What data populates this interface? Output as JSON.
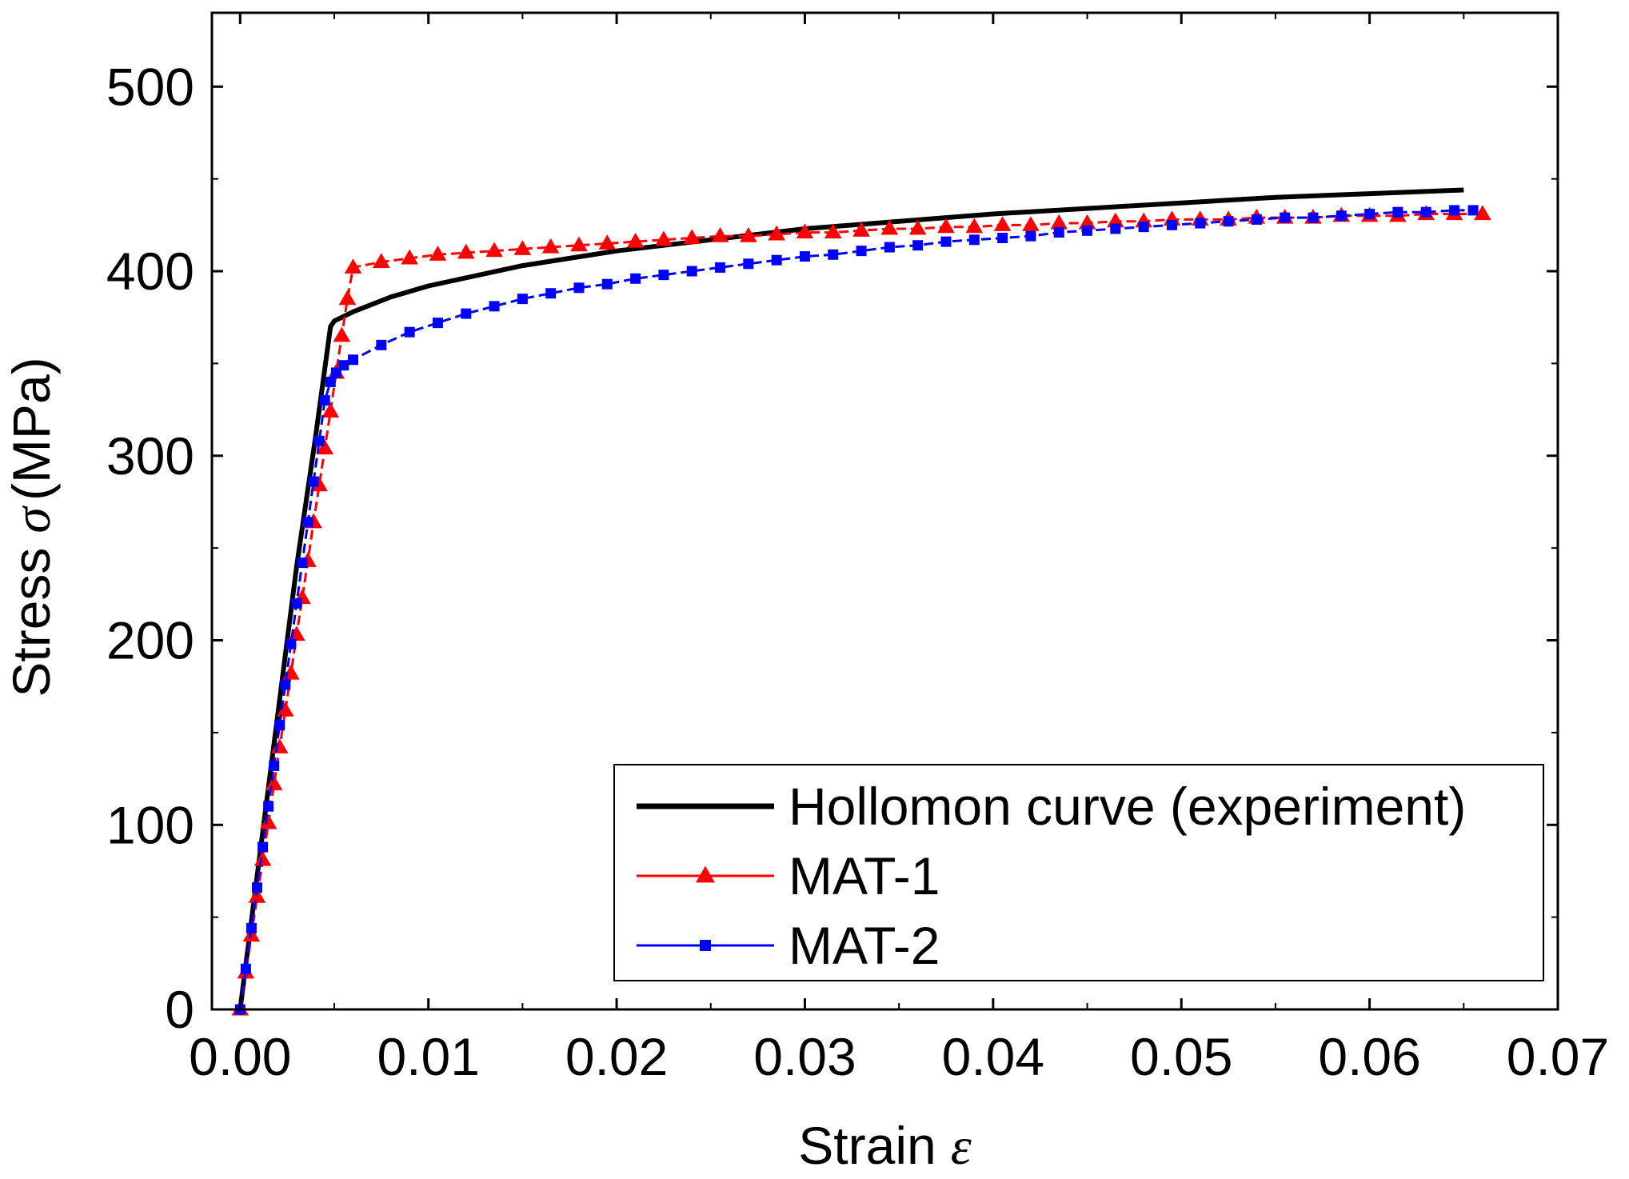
{
  "chart_data": {
    "type": "line",
    "title": "",
    "xlabel": "Strain",
    "xlabel_symbol": "ε",
    "ylabel": "Stress",
    "ylabel_symbol": "σ",
    "ylabel_unit": "(MPa)",
    "xlim": [
      -0.0015,
      0.07
    ],
    "ylim": [
      0,
      540
    ],
    "x_ticks": [
      0.0,
      0.01,
      0.02,
      0.03,
      0.04,
      0.05,
      0.06,
      0.07
    ],
    "x_tick_labels": [
      "0.00",
      "0.01",
      "0.02",
      "0.03",
      "0.04",
      "0.05",
      "0.06",
      "0.07"
    ],
    "y_ticks": [
      0,
      100,
      200,
      300,
      400,
      500
    ],
    "y_tick_labels": [
      "0",
      "100",
      "200",
      "300",
      "400",
      "500"
    ],
    "grid": false,
    "legend_position": "bottom-right",
    "series": [
      {
        "name": "Hollomon curve (experiment)",
        "color": "#000000",
        "marker": "none",
        "line": "solid",
        "x": [
          0.0,
          0.001,
          0.002,
          0.003,
          0.004,
          0.0048,
          0.005,
          0.006,
          0.008,
          0.01,
          0.015,
          0.02,
          0.025,
          0.03,
          0.035,
          0.04,
          0.045,
          0.05,
          0.055,
          0.06,
          0.065
        ],
        "y": [
          0,
          80,
          160,
          240,
          310,
          370,
          373,
          378,
          386,
          392,
          403,
          411,
          417,
          423,
          427,
          431,
          434,
          437,
          440,
          442,
          444
        ]
      },
      {
        "name": "MAT-1",
        "color": "#ff0000",
        "marker": "triangle",
        "line": "dashed",
        "x": [
          0.0,
          0.0003,
          0.0006,
          0.0009,
          0.0012,
          0.0015,
          0.0018,
          0.0021,
          0.0024,
          0.0027,
          0.003,
          0.0033,
          0.0036,
          0.0039,
          0.0042,
          0.0045,
          0.0048,
          0.0051,
          0.0054,
          0.0057,
          0.006,
          0.0075,
          0.009,
          0.0105,
          0.012,
          0.0135,
          0.015,
          0.0165,
          0.018,
          0.0195,
          0.021,
          0.0225,
          0.024,
          0.0255,
          0.027,
          0.0285,
          0.03,
          0.0315,
          0.033,
          0.0345,
          0.036,
          0.0375,
          0.039,
          0.0405,
          0.042,
          0.0435,
          0.045,
          0.0465,
          0.048,
          0.0495,
          0.051,
          0.0525,
          0.054,
          0.0555,
          0.057,
          0.0585,
          0.06,
          0.0615,
          0.063,
          0.0645,
          0.066
        ],
        "y": [
          0,
          20,
          40,
          61,
          81,
          101,
          122,
          142,
          162,
          182,
          203,
          223,
          243,
          264,
          284,
          304,
          324,
          345,
          365,
          385,
          402,
          405,
          407,
          409,
          410,
          411,
          412,
          413,
          414,
          415,
          416,
          417,
          418,
          419,
          419,
          420,
          421,
          421,
          422,
          423,
          423,
          424,
          424,
          425,
          425,
          426,
          426,
          427,
          427,
          428,
          428,
          428,
          429,
          429,
          429,
          430,
          430,
          430,
          431,
          431,
          431
        ]
      },
      {
        "name": "MAT-2",
        "color": "#0000ff",
        "marker": "square",
        "line": "dashed",
        "x": [
          0.0,
          0.0003,
          0.0006,
          0.0009,
          0.0012,
          0.0015,
          0.0018,
          0.0021,
          0.0024,
          0.0027,
          0.003,
          0.0033,
          0.0036,
          0.0039,
          0.0042,
          0.0045,
          0.0048,
          0.0051,
          0.0055,
          0.006,
          0.0075,
          0.009,
          0.0105,
          0.012,
          0.0135,
          0.015,
          0.0165,
          0.018,
          0.0195,
          0.021,
          0.0225,
          0.024,
          0.0255,
          0.027,
          0.0285,
          0.03,
          0.0315,
          0.033,
          0.0345,
          0.036,
          0.0375,
          0.039,
          0.0405,
          0.042,
          0.0435,
          0.045,
          0.0465,
          0.048,
          0.0495,
          0.051,
          0.0525,
          0.054,
          0.0555,
          0.057,
          0.0585,
          0.06,
          0.0615,
          0.063,
          0.0645,
          0.0655
        ],
        "y": [
          0,
          22,
          44,
          66,
          88,
          110,
          132,
          154,
          176,
          198,
          220,
          242,
          264,
          286,
          308,
          330,
          340,
          345,
          349,
          352,
          360,
          367,
          372,
          377,
          381,
          385,
          388,
          391,
          393,
          396,
          398,
          400,
          402,
          404,
          406,
          408,
          409,
          411,
          413,
          414,
          416,
          417,
          418,
          419,
          421,
          422,
          423,
          424,
          425,
          426,
          427,
          428,
          429,
          429,
          430,
          431,
          432,
          432,
          433,
          433
        ]
      }
    ]
  }
}
